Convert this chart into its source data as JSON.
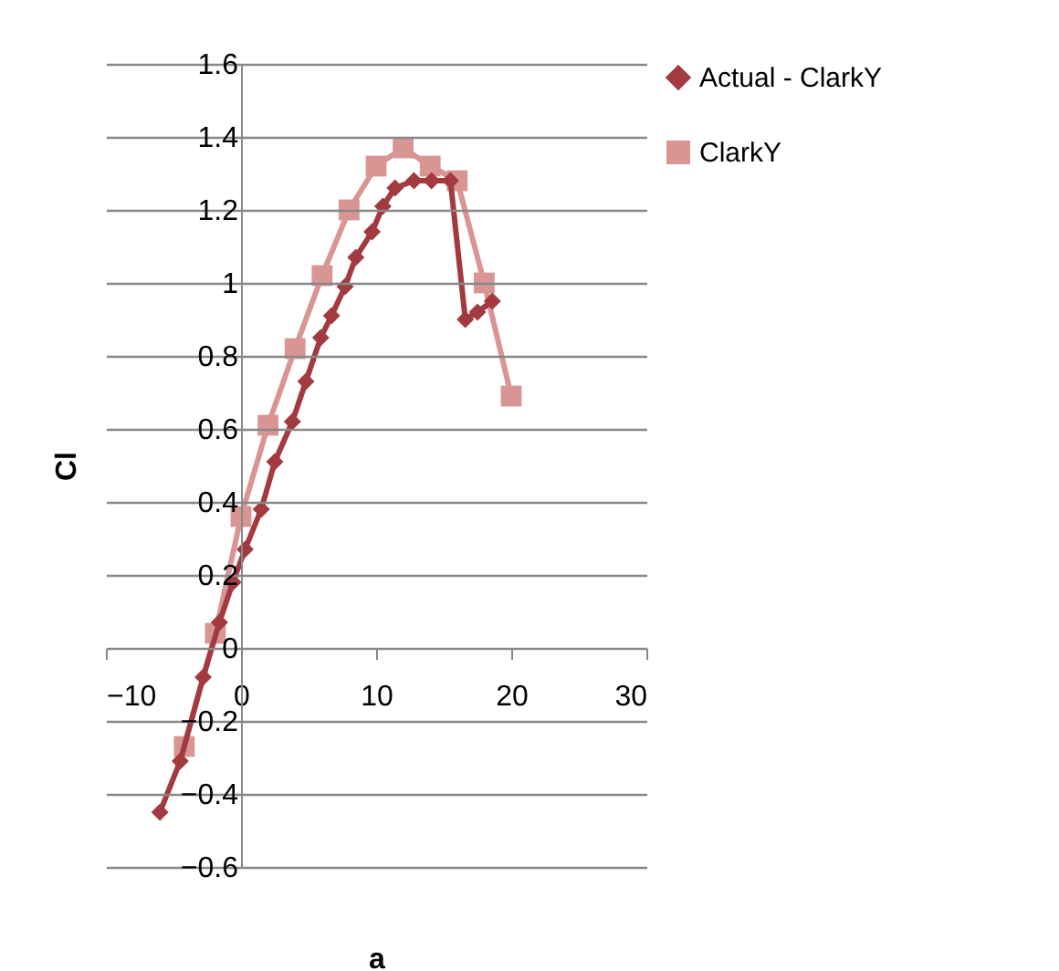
{
  "chart_data": {
    "type": "line",
    "xlabel": "a",
    "ylabel": "Cl",
    "xlim": [
      -10,
      30
    ],
    "xticks": [
      -10,
      0,
      10,
      20,
      30
    ],
    "ylim": [
      -0.6,
      1.6
    ],
    "yticks": [
      -0.6,
      -0.4,
      -0.2,
      0,
      0.2,
      0.4,
      0.6,
      0.8,
      1,
      1.2,
      1.4,
      1.6
    ],
    "grid": "y",
    "legend": "right",
    "series": [
      {
        "name": "Actual - ClarkY",
        "color": "#a33a3f",
        "marker": "diamond",
        "x": [
          -6,
          -4.5,
          -2.8,
          -1.6,
          -0.6,
          0.3,
          1.5,
          2.5,
          3.8,
          4.8,
          5.9,
          6.7,
          7.7,
          8.5,
          9.7,
          10.5,
          11.4,
          12.8,
          14.1,
          15.5,
          16.6,
          17.5,
          18.6
        ],
        "values": [
          -0.45,
          -0.31,
          -0.08,
          0.07,
          0.18,
          0.27,
          0.38,
          0.51,
          0.62,
          0.73,
          0.85,
          0.91,
          0.99,
          1.07,
          1.14,
          1.21,
          1.26,
          1.28,
          1.28,
          1.28,
          0.9,
          0.92,
          0.95
        ]
      },
      {
        "name": "ClarkY",
        "color": "#d99594",
        "marker": "square",
        "x": [
          -4.2,
          -1.9,
          0,
          2,
          4,
          6,
          8,
          10,
          12,
          14,
          16,
          18,
          20
        ],
        "values": [
          -0.27,
          0.04,
          0.36,
          0.61,
          0.82,
          1.02,
          1.2,
          1.32,
          1.37,
          1.32,
          1.28,
          1.0,
          0.69
        ]
      }
    ]
  }
}
